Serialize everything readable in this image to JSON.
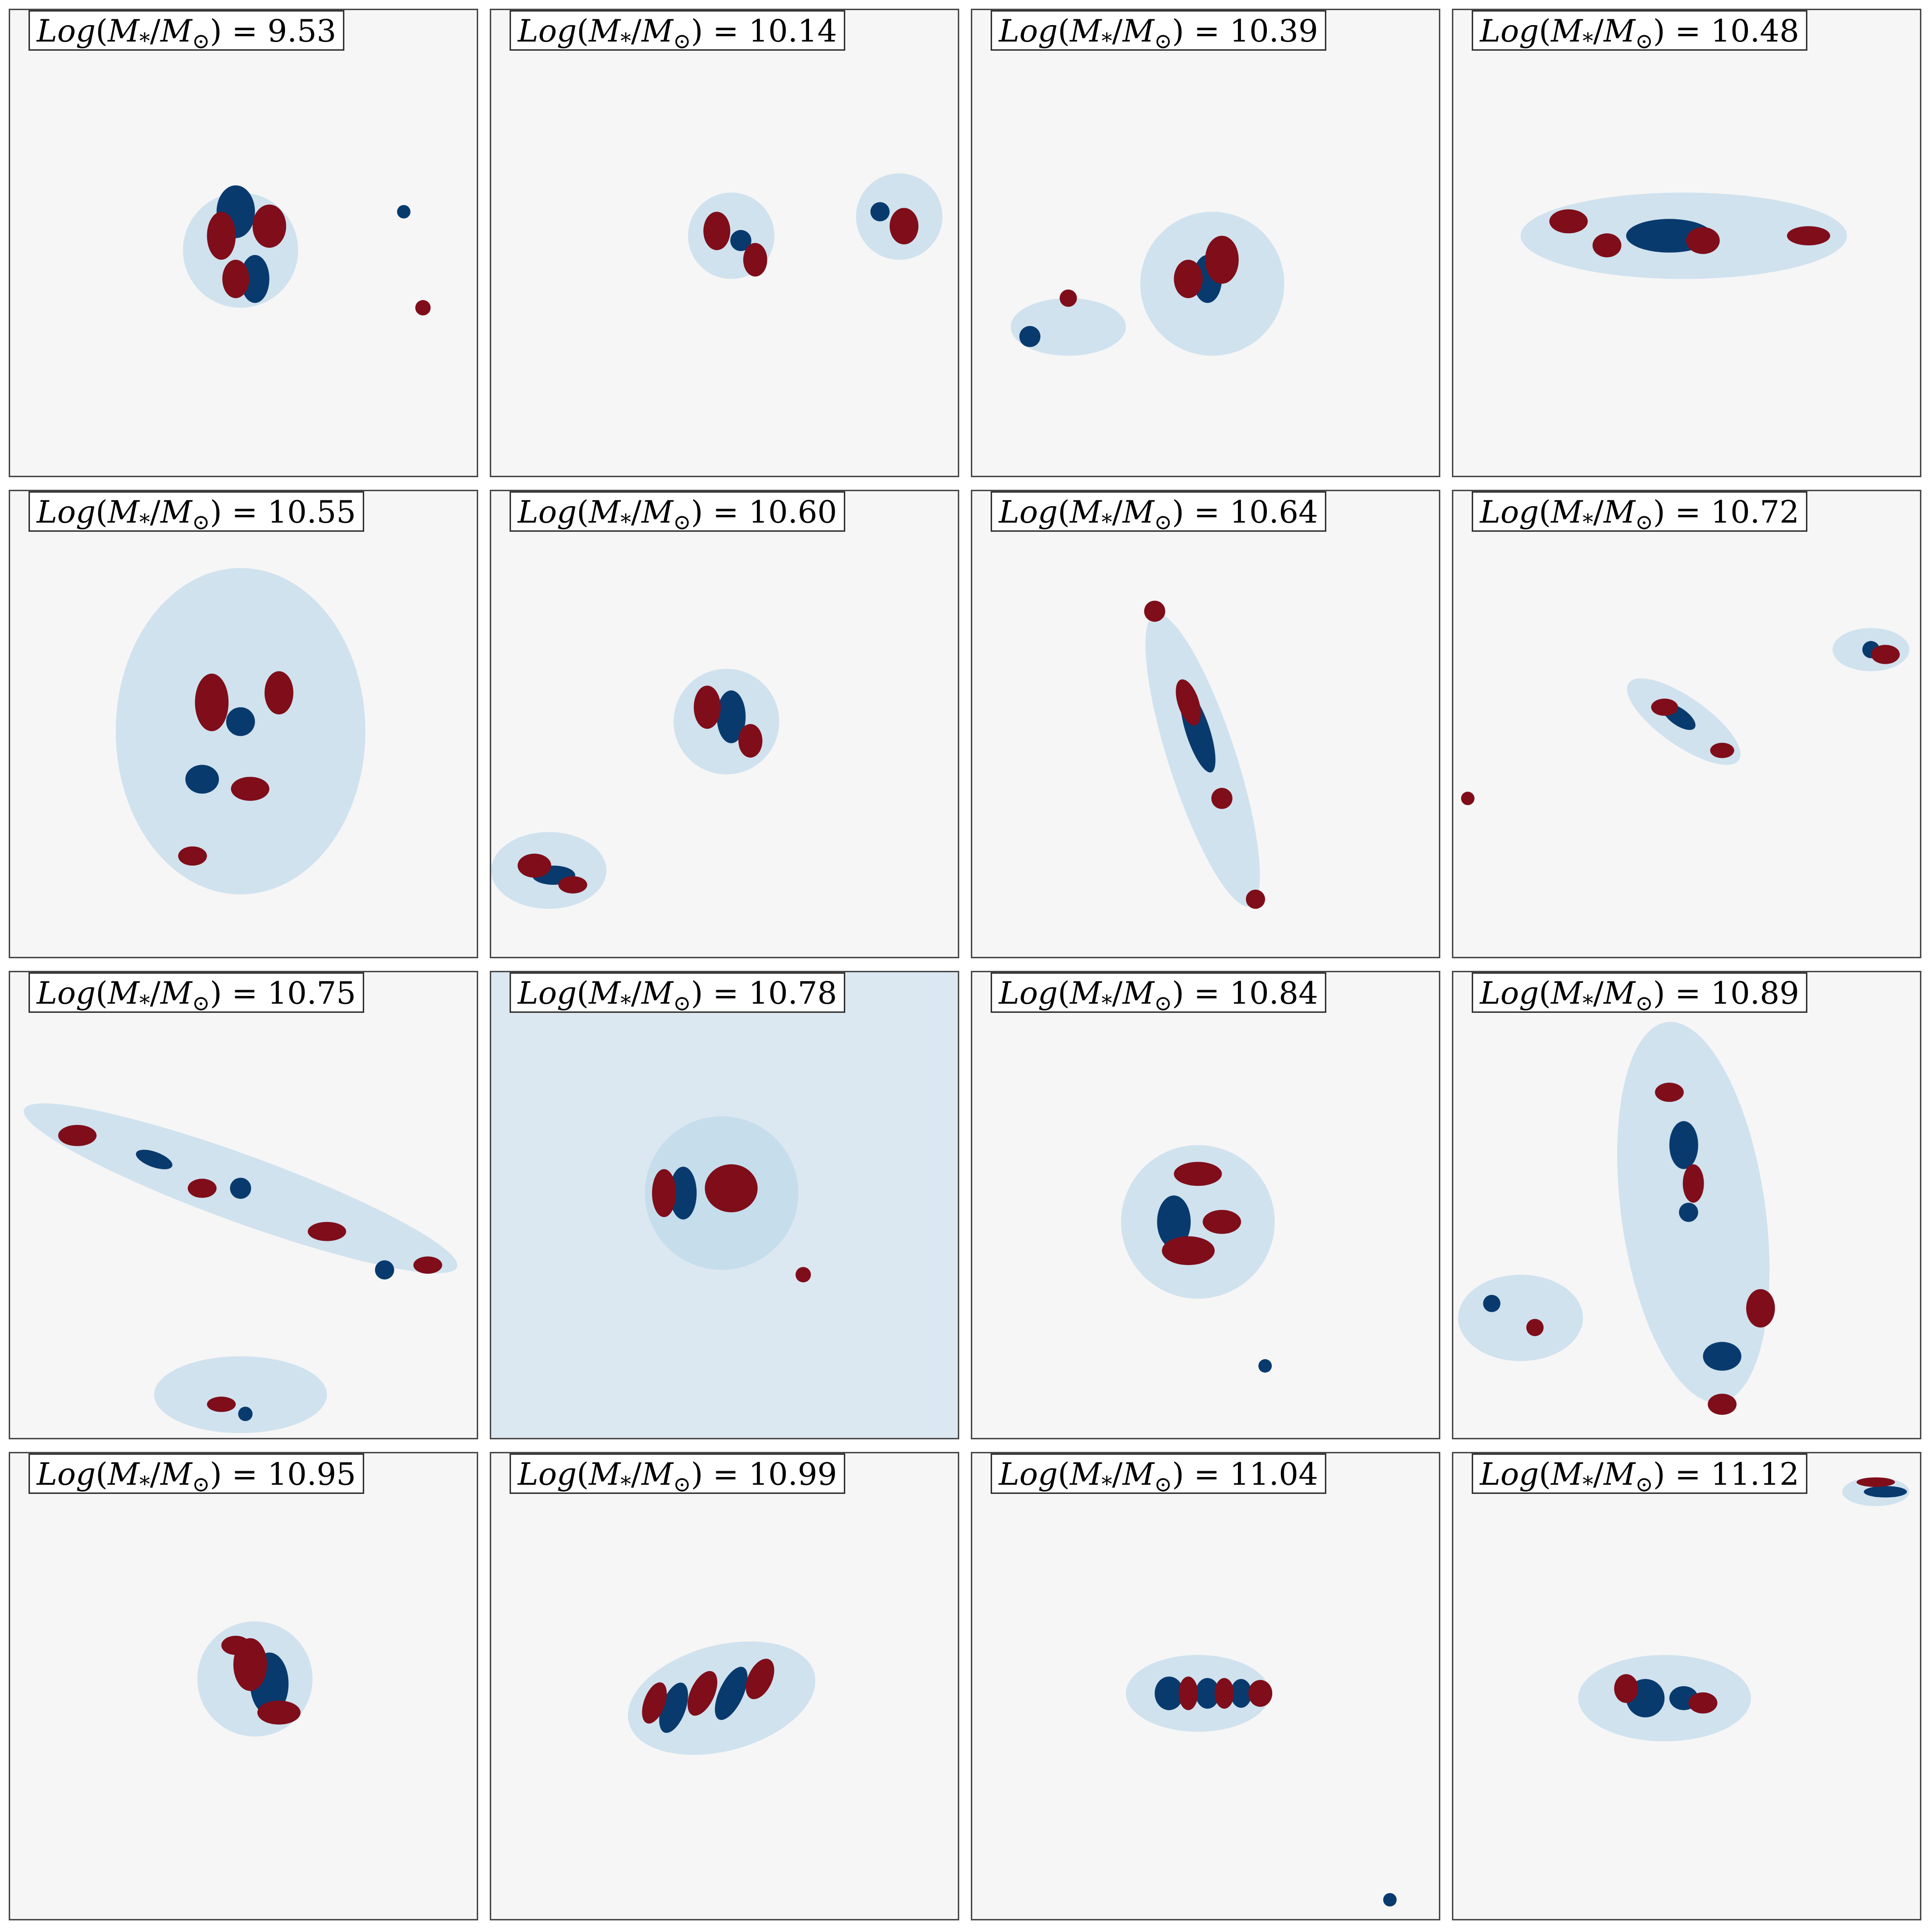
{
  "figure": {
    "colors": {
      "red": "#7f0d1a",
      "blue": "#083a6e",
      "background": "#f6f6f6",
      "light_red": "#f4b8a0",
      "light_blue": "#b7d5ea"
    },
    "panels": [
      {
        "label": "Log(M*/M⊙)",
        "value": "9.53"
      },
      {
        "label": "Log(M*/M⊙)",
        "value": "10.14"
      },
      {
        "label": "Log(M*/M⊙)",
        "value": "10.39"
      },
      {
        "label": "Log(M*/M⊙)",
        "value": "10.48"
      },
      {
        "label": "Log(M*/M⊙)",
        "value": "10.55"
      },
      {
        "label": "Log(M*/M⊙)",
        "value": "10.60"
      },
      {
        "label": "Log(M*/M⊙)",
        "value": "10.64"
      },
      {
        "label": "Log(M*/M⊙)",
        "value": "10.72"
      },
      {
        "label": "Log(M*/M⊙)",
        "value": "10.75"
      },
      {
        "label": "Log(M*/M⊙)",
        "value": "10.78"
      },
      {
        "label": "Log(M*/M⊙)",
        "value": "10.84"
      },
      {
        "label": "Log(M*/M⊙)",
        "value": "10.89"
      },
      {
        "label": "Log(M*/M⊙)",
        "value": "10.95"
      },
      {
        "label": "Log(M*/M⊙)",
        "value": "10.99"
      },
      {
        "label": "Log(M*/M⊙)",
        "value": "11.04"
      },
      {
        "label": "Log(M*/M⊙)",
        "value": "11.12"
      }
    ]
  }
}
